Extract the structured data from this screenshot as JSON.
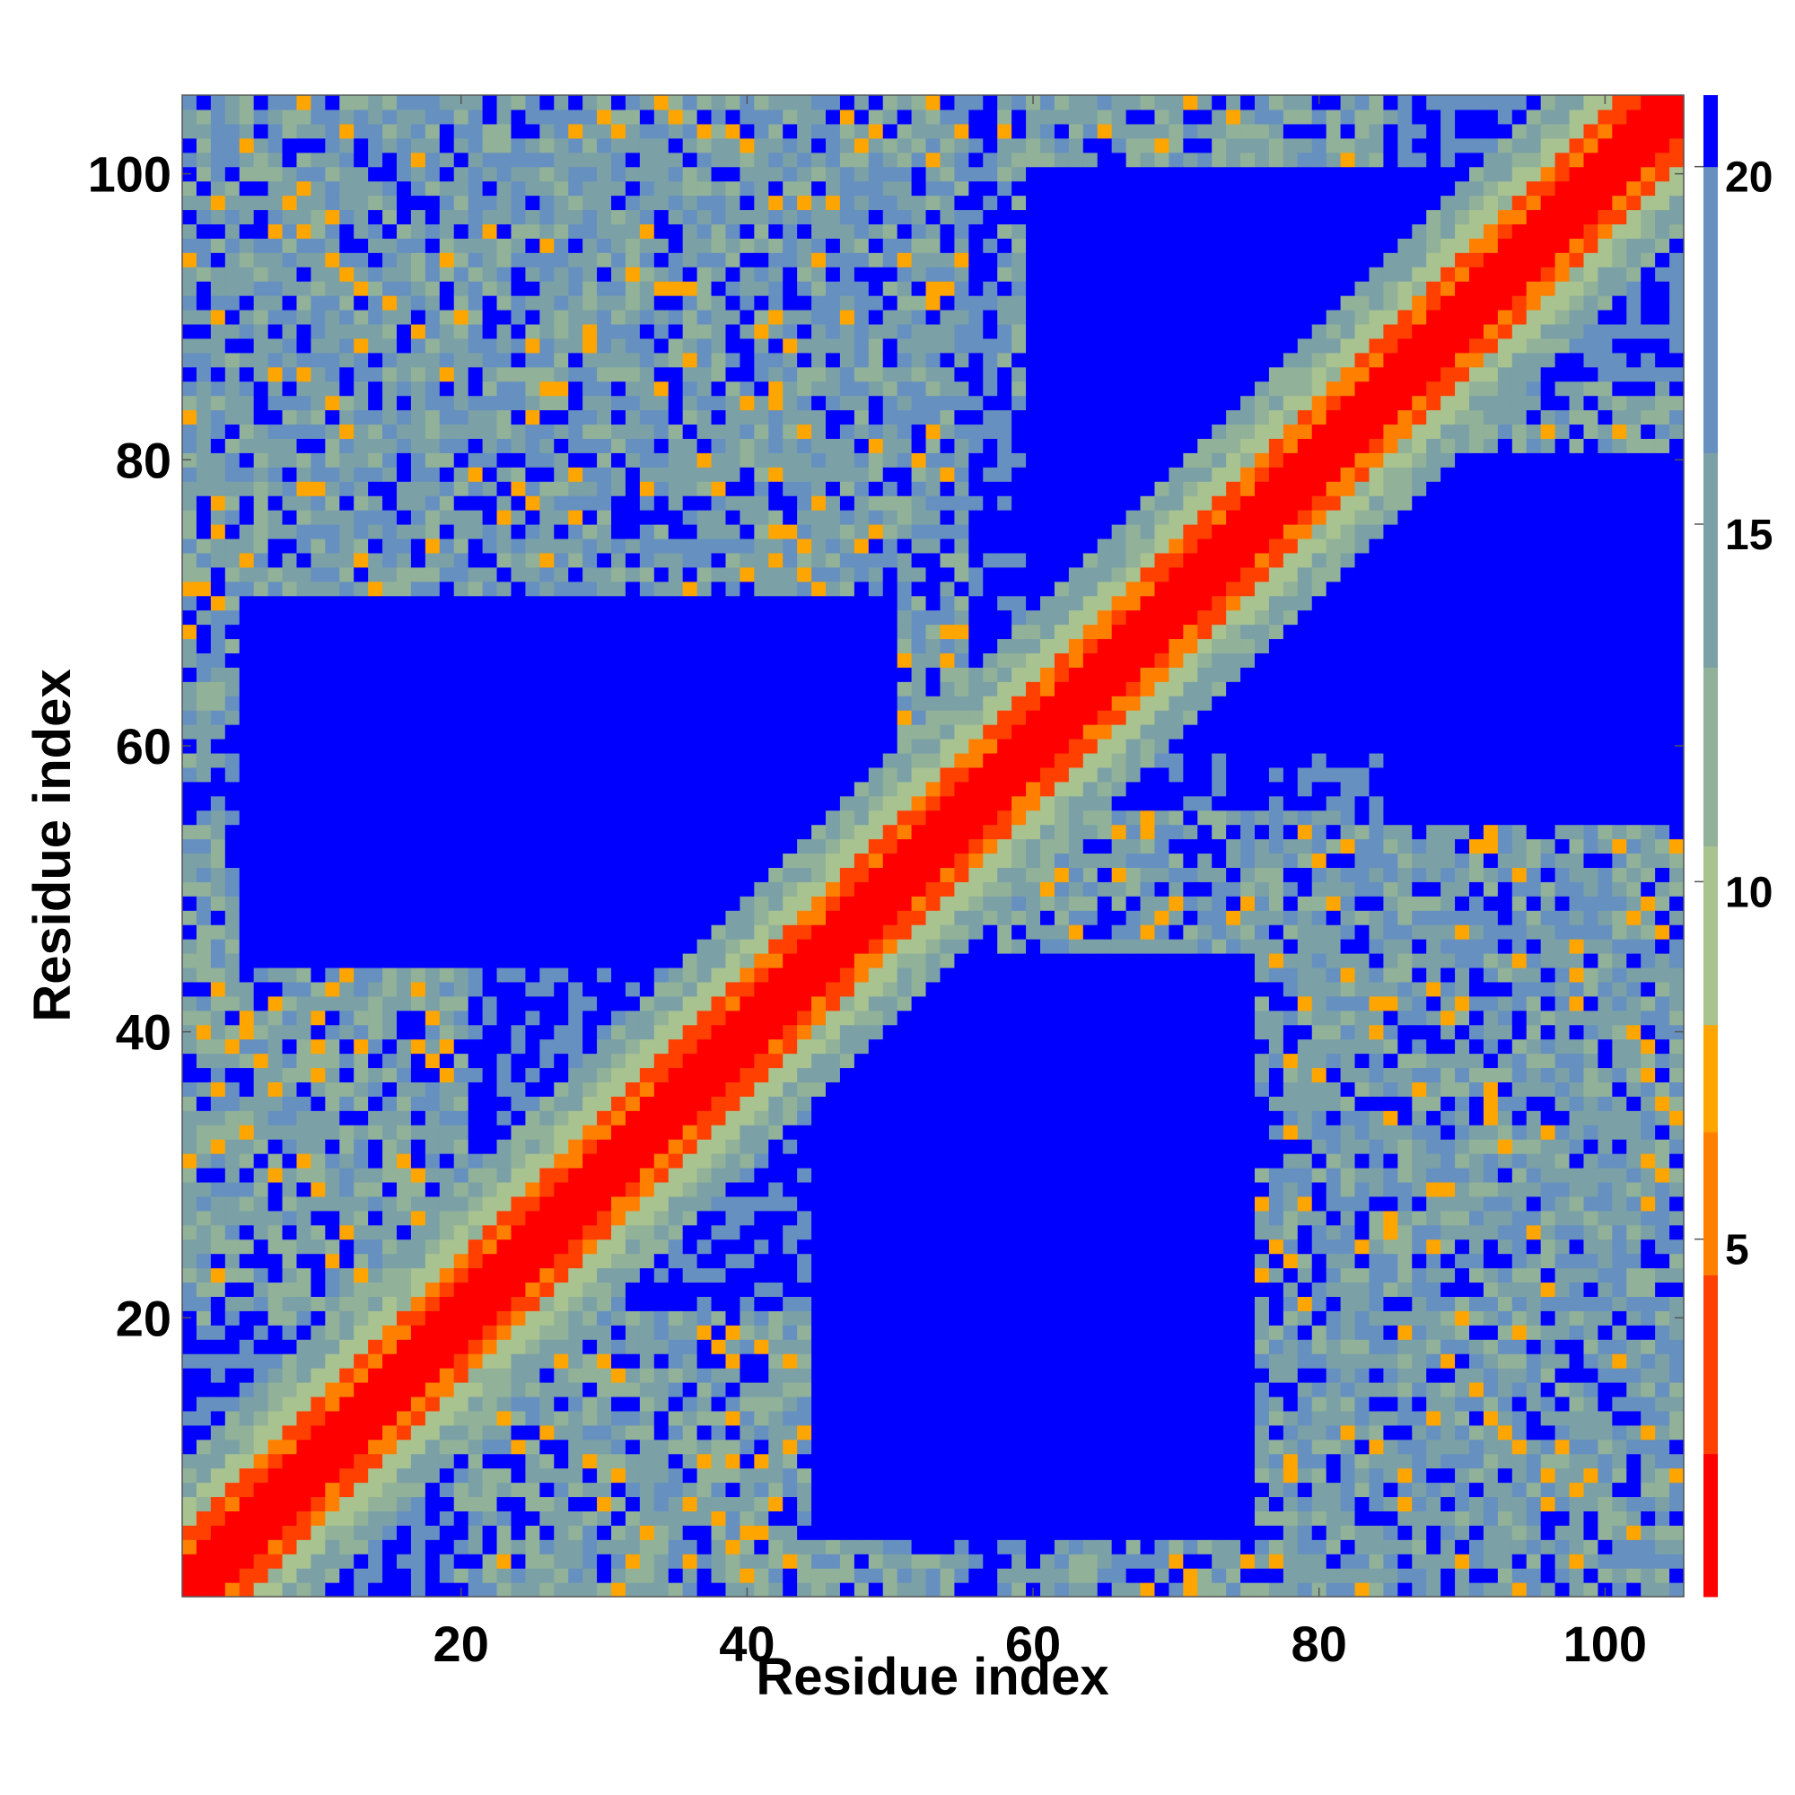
{
  "chart_data": {
    "type": "heatmap",
    "title": "",
    "xlabel": "Residue index",
    "ylabel": "Residue index",
    "n_residues": 105,
    "xlim": [
      1,
      105
    ],
    "ylim": [
      1,
      105
    ],
    "xticks": [
      20,
      40,
      60,
      80,
      100
    ],
    "yticks": [
      20,
      40,
      60,
      80,
      100
    ],
    "colorbar": {
      "min": 0,
      "max": 21,
      "ticks": [
        5,
        10,
        15,
        20
      ],
      "colors": [
        "#ff0000",
        "#ff4000",
        "#ff8000",
        "#ffa500",
        "#a8c290",
        "#91b199",
        "#7ba1a6",
        "#6690bf",
        "#0000ff"
      ],
      "boundaries": [
        0,
        2,
        4.5,
        6.5,
        8,
        10.5,
        13,
        16,
        20,
        21
      ]
    },
    "structure": {
      "diagonal_band": "contacts along the main diagonal (|i-j| small) at distances below 8",
      "contact_blocks": [
        {
          "x": [
            1,
            55
          ],
          "y": [
            58,
            105
          ],
          "mean_distance": 14
        },
        {
          "x": [
            58,
            105
          ],
          "y": [
            1,
            55
          ],
          "mean_distance": 14
        },
        {
          "x": [
            1,
            20
          ],
          "y": [
            20,
            55
          ],
          "mean_distance": 13
        },
        {
          "x": [
            20,
            55
          ],
          "y": [
            1,
            20
          ],
          "mean_distance": 13
        },
        {
          "x": [
            85,
            105
          ],
          "y": [
            58,
            85
          ],
          "mean_distance": 13
        },
        {
          "x": [
            58,
            85
          ],
          "y": [
            85,
            105
          ],
          "mean_distance": 13
        }
      ],
      "far_regions": [
        {
          "x": [
            5,
            50
          ],
          "y": [
            45,
            70
          ],
          "distance": 21
        },
        {
          "x": [
            45,
            75
          ],
          "y": [
            5,
            45
          ],
          "distance": 21
        },
        {
          "x": [
            60,
            90
          ],
          "y": [
            60,
            100
          ],
          "distance": 21
        },
        {
          "x": [
            85,
            105
          ],
          "y": [
            55,
            80
          ],
          "distance": 21
        }
      ]
    }
  }
}
